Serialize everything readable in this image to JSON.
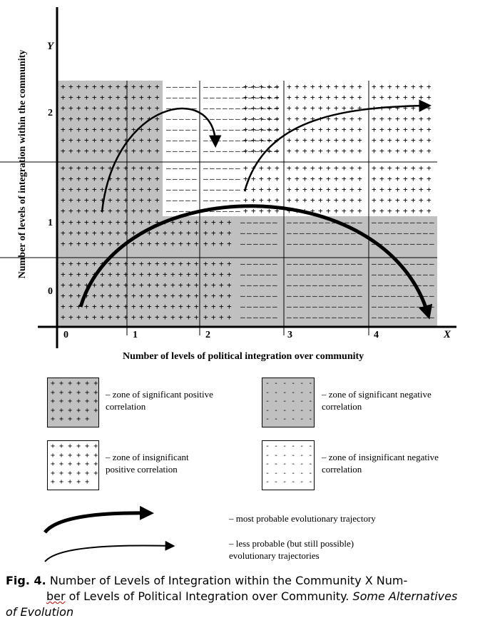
{
  "diagram": {
    "y_axis_letter": "Y",
    "x_axis_letter": "X",
    "y_axis_title": "Number of levels of integration within the community",
    "x_axis_title": "Number of levels of political integration over community",
    "y_ticks": [
      "2",
      "1",
      "0"
    ],
    "x_ticks": [
      "0",
      "1",
      "2",
      "3",
      "4"
    ],
    "zone_colors": {
      "significant": "#c0c0c0",
      "insignificant": "#ffffff"
    }
  },
  "legend": {
    "sig_pos": "– zone of significant positive\ncorrelation",
    "sig_neg": "– zone of significant negative\ncorrelation",
    "insig_pos": "– zone of insignificant\npositive correlation",
    "insig_neg": "– zone of insignificant negative\ncorrelation",
    "most_probable": "– most probable evolutionary trajectory",
    "less_probable": "– less probable (but still possible)\nevolutionary trajectories"
  },
  "caption": {
    "label": "Fig. 4.",
    "text_part1": " Number of Levels of Integration within the Community X Num-",
    "text_part2a": "ber",
    "text_part2b": " of Levels of Political Integration over Community. ",
    "italic_part": "Some Alternatives of Evolution"
  }
}
